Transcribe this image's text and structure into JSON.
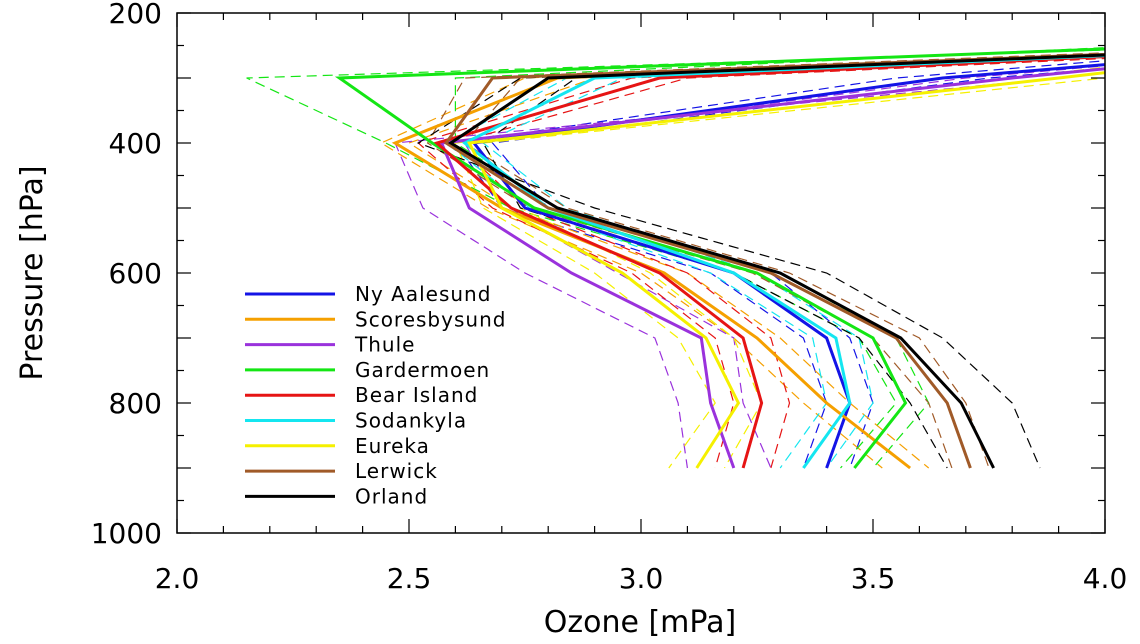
{
  "chart_data": {
    "type": "line",
    "xlabel": "Ozone [mPa]",
    "ylabel": "Pressure [hPa]",
    "xlim": [
      2.0,
      4.0
    ],
    "ylim": [
      1000,
      200
    ],
    "y_inverted": true,
    "xticks": [
      2.0,
      2.5,
      3.0,
      3.5,
      4.0
    ],
    "xtick_labels": [
      "2.0",
      "2.5",
      "3.0",
      "3.5",
      "4.0"
    ],
    "yticks": [
      200,
      400,
      600,
      800,
      1000
    ],
    "ytick_labels": [
      "200",
      "400",
      "600",
      "800",
      "1000"
    ],
    "grid": false,
    "legend_position": "bottom-left",
    "line_styles": {
      "solid": "station profile",
      "dashed": "envelope / comparison profiles"
    },
    "pressure_levels": [
      250,
      300,
      400,
      500,
      600,
      700,
      800,
      900
    ],
    "series": [
      {
        "name": "Ny Aalesund",
        "color": "#1414e6",
        "x": [
          4.5,
          3.65,
          2.64,
          2.75,
          3.2,
          3.4,
          3.45,
          3.4
        ],
        "dashed": [
          [
            4.6,
            3.75,
            2.68,
            2.8,
            3.28,
            3.45,
            3.5,
            3.45
          ],
          [
            4.4,
            3.55,
            2.6,
            2.7,
            3.15,
            3.35,
            3.4,
            3.35
          ]
        ]
      },
      {
        "name": "Scoresbysund",
        "color": "#f5a000",
        "x": [
          4.5,
          2.82,
          2.47,
          2.7,
          3.05,
          3.25,
          3.4,
          3.58
        ],
        "dashed": [
          [
            4.6,
            2.9,
            2.5,
            2.72,
            3.1,
            3.3,
            3.45,
            3.62
          ],
          [
            4.4,
            2.75,
            2.44,
            2.67,
            3.0,
            3.2,
            3.35,
            3.52
          ]
        ]
      },
      {
        "name": "Thule",
        "color": "#9a32dc",
        "x": [
          4.5,
          3.8,
          2.57,
          2.63,
          2.85,
          3.13,
          3.15,
          3.2
        ],
        "dashed": [
          [
            4.6,
            3.9,
            2.47,
            2.53,
            2.75,
            3.03,
            3.08,
            3.1
          ],
          [
            4.5,
            3.7,
            2.62,
            2.7,
            2.95,
            3.2,
            3.22,
            3.28
          ]
        ]
      },
      {
        "name": "Gardermoen",
        "color": "#14e614",
        "x": [
          4.2,
          2.35,
          2.55,
          2.77,
          3.25,
          3.5,
          3.57,
          3.46
        ],
        "dashed": [
          [
            4.3,
            2.15,
            2.45,
            2.72,
            3.2,
            3.47,
            3.55,
            3.43
          ],
          [
            4.1,
            2.6,
            2.6,
            2.82,
            3.3,
            3.55,
            3.62,
            3.5
          ]
        ]
      },
      {
        "name": "Bear Island",
        "color": "#e61414",
        "x": [
          4.5,
          3.04,
          2.56,
          2.72,
          3.04,
          3.22,
          3.26,
          3.22
        ],
        "dashed": [
          [
            4.6,
            3.1,
            2.6,
            2.75,
            3.1,
            3.28,
            3.32,
            3.28
          ],
          [
            4.4,
            2.98,
            2.52,
            2.68,
            2.98,
            3.16,
            3.2,
            3.16
          ]
        ]
      },
      {
        "name": "Sodankyla",
        "color": "#14e6f0",
        "x": [
          4.5,
          2.9,
          2.62,
          2.8,
          3.2,
          3.42,
          3.45,
          3.35
        ],
        "dashed": [
          [
            4.6,
            2.96,
            2.66,
            2.84,
            3.25,
            3.47,
            3.5,
            3.4
          ],
          [
            4.4,
            2.84,
            2.58,
            2.76,
            3.15,
            3.37,
            3.4,
            3.3
          ]
        ]
      },
      {
        "name": "Eureka",
        "color": "#f5f000",
        "x": [
          4.5,
          3.9,
          2.63,
          2.7,
          2.96,
          3.14,
          3.21,
          3.12
        ],
        "dashed": [
          [
            4.6,
            4.0,
            2.66,
            2.74,
            3.02,
            3.2,
            3.26,
            3.18
          ],
          [
            4.4,
            3.8,
            2.6,
            2.66,
            2.9,
            3.08,
            3.16,
            3.06
          ]
        ]
      },
      {
        "name": "Lerwick",
        "color": "#a05a28",
        "x": [
          4.5,
          2.68,
          2.58,
          2.8,
          3.28,
          3.55,
          3.66,
          3.71
        ],
        "dashed": [
          [
            4.6,
            2.74,
            2.62,
            2.84,
            3.32,
            3.6,
            3.7,
            3.75
          ],
          [
            4.4,
            2.62,
            2.54,
            2.76,
            3.24,
            3.5,
            3.62,
            3.67
          ]
        ]
      },
      {
        "name": "Orland",
        "color": "#000000",
        "x": [
          4.5,
          2.8,
          2.59,
          2.82,
          3.3,
          3.56,
          3.69,
          3.76
        ],
        "dashed": [
          [
            4.6,
            2.74,
            2.52,
            2.9,
            3.4,
            3.65,
            3.8,
            3.86
          ],
          [
            4.4,
            2.86,
            2.66,
            2.74,
            3.2,
            3.47,
            3.58,
            3.66
          ]
        ]
      }
    ]
  }
}
